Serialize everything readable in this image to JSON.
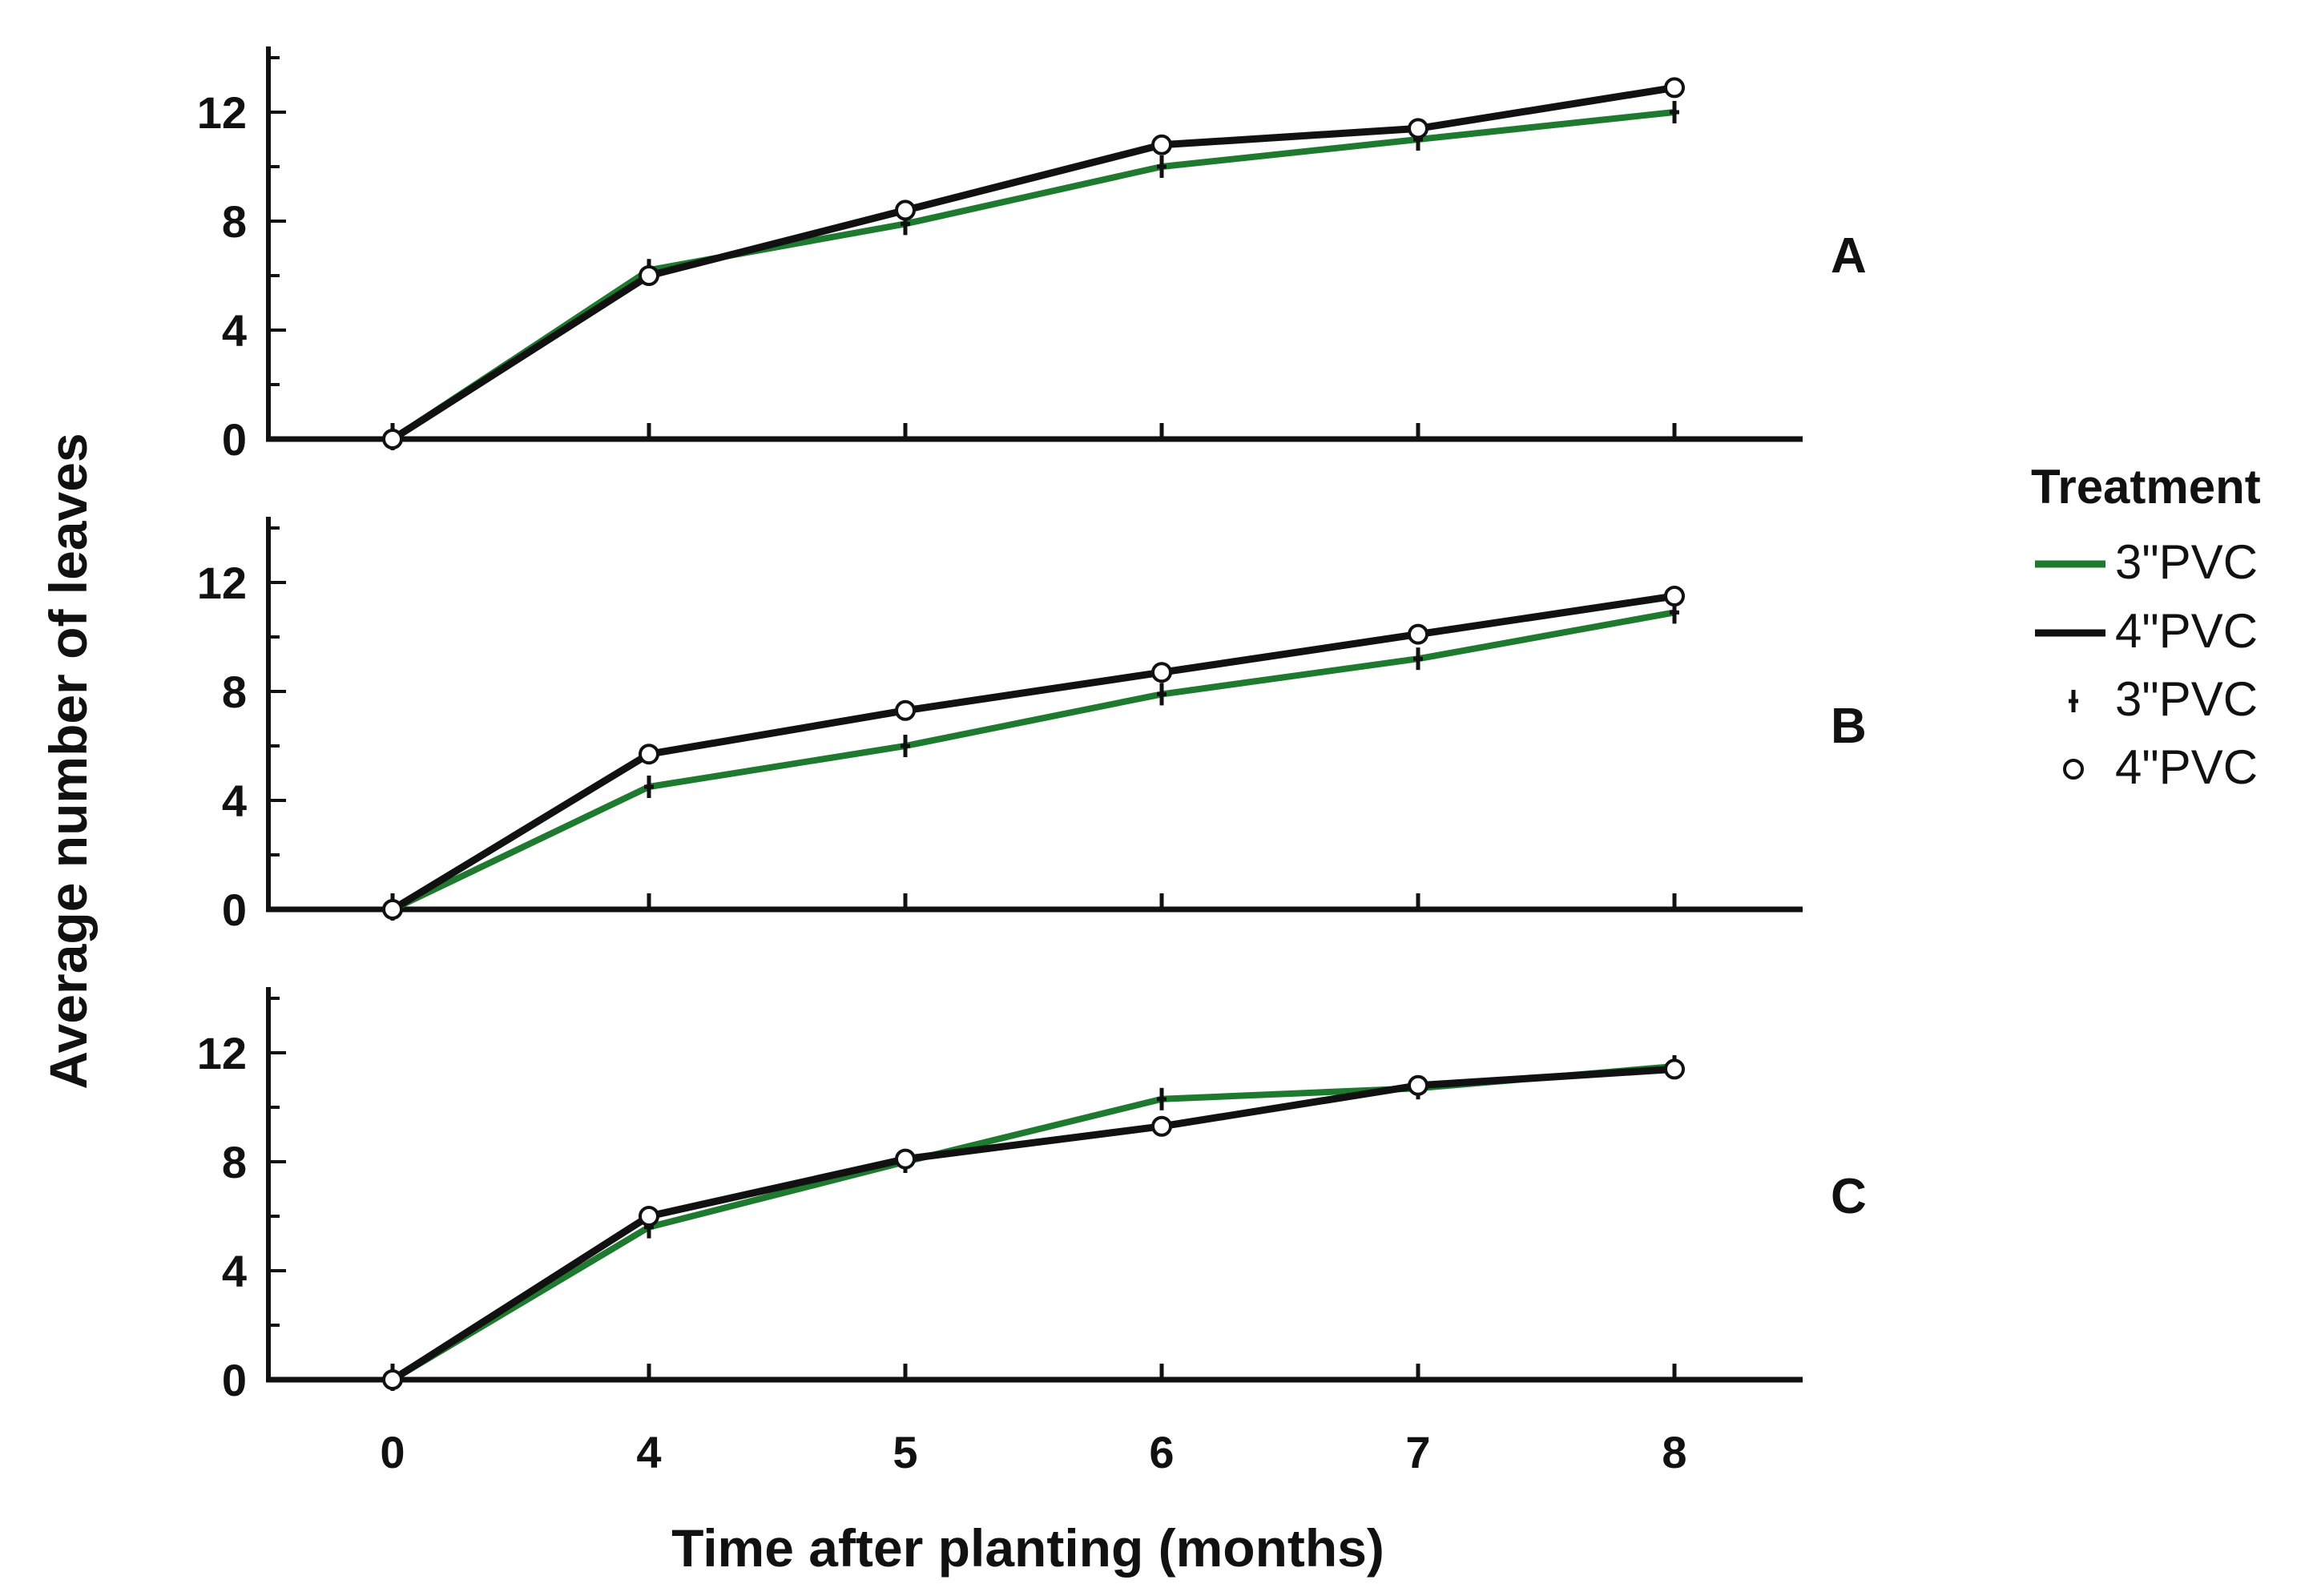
{
  "chart_data": [
    {
      "type": "line",
      "panel": "A",
      "categories": [
        "0",
        "4",
        "5",
        "6",
        "7",
        "8"
      ],
      "xlabel": "Time after planting (months)",
      "ylabel": "Average number of leaves",
      "ylim": [
        0,
        14
      ],
      "yticks": [
        "0",
        "4",
        "8",
        "12"
      ],
      "series": [
        {
          "name": "3\"PVC",
          "color": "#1e7a2e",
          "marker": "plus",
          "values": [
            0,
            6.2,
            7.9,
            10.0,
            11.0,
            12.0
          ]
        },
        {
          "name": "4\"PVC",
          "color": "#111111",
          "marker": "circle",
          "values": [
            0,
            6.0,
            8.4,
            10.8,
            11.4,
            12.9
          ]
        }
      ]
    },
    {
      "type": "line",
      "panel": "B",
      "categories": [
        "0",
        "4",
        "5",
        "6",
        "7",
        "8"
      ],
      "xlabel": "Time after planting (months)",
      "ylabel": "Average number of leaves",
      "ylim": [
        0,
        14
      ],
      "yticks": [
        "0",
        "4",
        "8",
        "12"
      ],
      "series": [
        {
          "name": "3\"PVC",
          "color": "#1e7a2e",
          "marker": "plus",
          "values": [
            0,
            4.5,
            6.0,
            7.9,
            9.2,
            10.9
          ]
        },
        {
          "name": "4\"PVC",
          "color": "#111111",
          "marker": "circle",
          "values": [
            0,
            5.7,
            7.3,
            8.7,
            10.1,
            11.5
          ]
        }
      ]
    },
    {
      "type": "line",
      "panel": "C",
      "categories": [
        "0",
        "4",
        "5",
        "6",
        "7",
        "8"
      ],
      "xlabel": "Time after planting (months)",
      "ylabel": "Average number of leaves",
      "ylim": [
        0,
        14
      ],
      "yticks": [
        "0",
        "4",
        "8",
        "12"
      ],
      "series": [
        {
          "name": "3\"PVC",
          "color": "#1e7a2e",
          "marker": "plus",
          "values": [
            0,
            5.6,
            8.0,
            10.3,
            10.7,
            11.5
          ]
        },
        {
          "name": "4\"PVC",
          "color": "#111111",
          "marker": "circle",
          "values": [
            0,
            6.0,
            8.1,
            9.3,
            10.8,
            11.4
          ]
        }
      ]
    }
  ],
  "labels": {
    "ylabel": "Average number of leaves",
    "xlabel": "Time after planting (months)"
  },
  "legend": {
    "title": "Treatment",
    "items": [
      {
        "label": "3\"PVC",
        "kind": "line",
        "color": "#1e7a2e"
      },
      {
        "label": "4\"PVC",
        "kind": "line",
        "color": "#111111"
      },
      {
        "label": "3\"PVC",
        "kind": "plus",
        "color": "#111111"
      },
      {
        "label": "4\"PVC",
        "kind": "circle",
        "color": "#111111"
      }
    ]
  }
}
